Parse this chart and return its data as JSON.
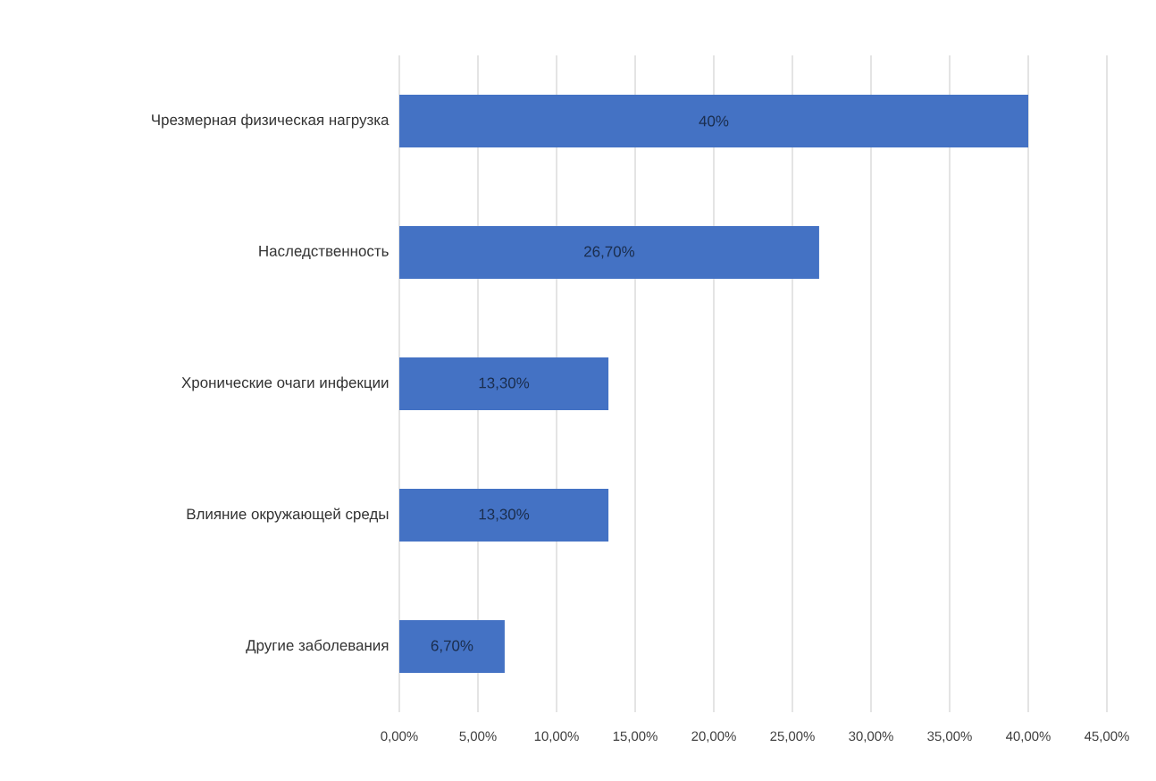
{
  "chart_data": {
    "type": "bar",
    "orientation": "horizontal",
    "categories": [
      "Чрезмерная физическая нагрузка",
      "Наследственность",
      "Хронические очаги инфекции",
      "Влияние окружающей среды",
      "Другие заболевания"
    ],
    "values": [
      40,
      26.7,
      13.3,
      13.3,
      6.7
    ],
    "value_labels": [
      "40%",
      "26,70%",
      "13,30%",
      "13,30%",
      "6,70%"
    ],
    "color": "#4472c4",
    "xlim": [
      0,
      45
    ],
    "xticks": [
      {
        "value": 0,
        "label": "0,00%"
      },
      {
        "value": 5,
        "label": "5,00%"
      },
      {
        "value": 10,
        "label": "10,00%"
      },
      {
        "value": 15,
        "label": "15,00%"
      },
      {
        "value": 20,
        "label": "20,00%"
      },
      {
        "value": 25,
        "label": "25,00%"
      },
      {
        "value": 30,
        "label": "30,00%"
      },
      {
        "value": 35,
        "label": "35,00%"
      },
      {
        "value": 40,
        "label": "40,00%"
      },
      {
        "value": 45,
        "label": "45,00%"
      }
    ],
    "grid": "x"
  }
}
